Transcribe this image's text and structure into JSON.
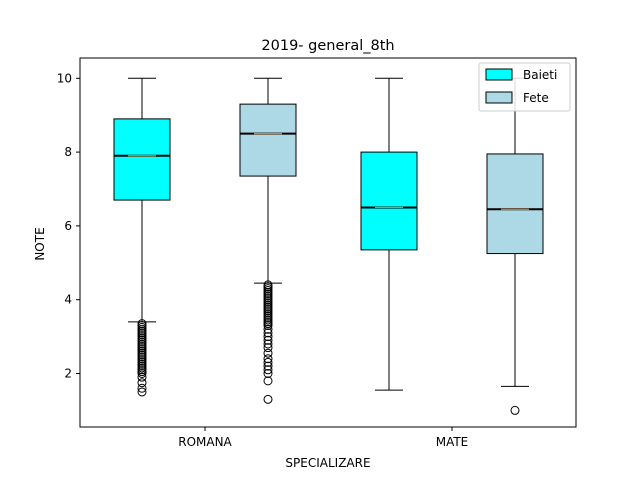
{
  "chart_data": {
    "type": "box",
    "title": "2019- general_8th",
    "xlabel": "SPECIALIZARE",
    "ylabel": "NOTE",
    "categories": [
      "ROMANA",
      "MATE"
    ],
    "ylim": [
      0.55,
      10.55
    ],
    "yticks": [
      2,
      4,
      6,
      8,
      10
    ],
    "grid": false,
    "legend_position": "top-right",
    "series": [
      {
        "name": "Baieti",
        "color": "#00ffff"
      },
      {
        "name": "Fete",
        "color": "#add8e6"
      }
    ],
    "boxes": [
      {
        "category": "ROMANA",
        "series": "Baieti",
        "whisker_low": 3.4,
        "q1": 6.7,
        "median": 7.9,
        "q3": 8.9,
        "whisker_high": 10.0,
        "outliers": [
          3.35,
          3.3,
          3.25,
          3.2,
          3.15,
          3.1,
          3.05,
          3.0,
          2.95,
          2.9,
          2.85,
          2.8,
          2.75,
          2.7,
          2.65,
          2.6,
          2.55,
          2.5,
          2.45,
          2.4,
          2.35,
          2.3,
          2.25,
          2.2,
          2.15,
          2.1,
          2.05,
          2.0,
          1.9,
          1.75,
          1.6,
          1.5
        ]
      },
      {
        "category": "ROMANA",
        "series": "Fete",
        "whisker_low": 4.45,
        "q1": 7.35,
        "median": 8.5,
        "q3": 9.3,
        "whisker_high": 10.0,
        "outliers": [
          4.4,
          4.35,
          4.3,
          4.25,
          4.2,
          4.15,
          4.1,
          4.05,
          4.0,
          3.95,
          3.9,
          3.85,
          3.8,
          3.75,
          3.7,
          3.65,
          3.6,
          3.55,
          3.5,
          3.45,
          3.4,
          3.35,
          3.3,
          3.2,
          3.1,
          3.0,
          2.9,
          2.8,
          2.7,
          2.55,
          2.4,
          2.3,
          2.2,
          2.1,
          2.0,
          1.8,
          1.3
        ]
      },
      {
        "category": "MATE",
        "series": "Baieti",
        "whisker_low": 1.55,
        "q1": 5.35,
        "median": 6.5,
        "q3": 8.0,
        "whisker_high": 10.0,
        "outliers": []
      },
      {
        "category": "MATE",
        "series": "Fete",
        "whisker_low": 1.65,
        "q1": 5.25,
        "median": 6.45,
        "q3": 7.95,
        "whisker_high": 10.0,
        "outliers": [
          1.0
        ]
      }
    ],
    "median_color": "#ff7f0e"
  }
}
